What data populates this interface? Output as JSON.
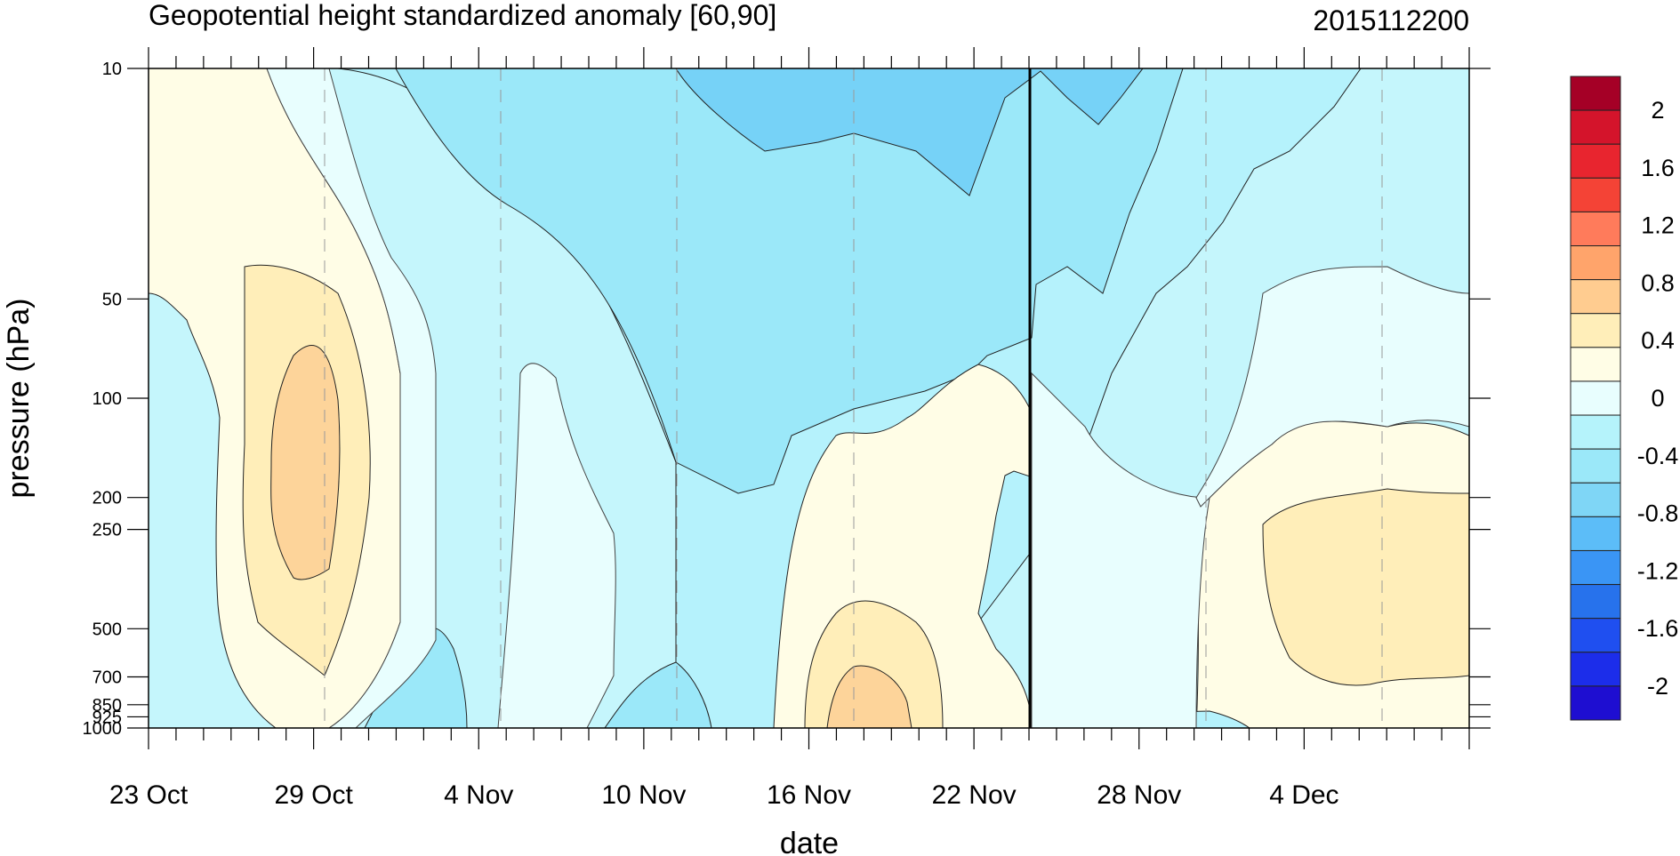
{
  "chart_data": {
    "type": "heatmap",
    "title": "Geopotential height standardized anomaly [60,90]",
    "timestamp": "2015112200",
    "xlabel": "date",
    "ylabel": "pressure (hPa)",
    "x_ticks": [
      "23 Oct",
      "29 Oct",
      "4 Nov",
      "10 Nov",
      "16 Nov",
      "22 Nov",
      "28 Nov",
      "4 Dec"
    ],
    "x_range": [
      "2015-10-23",
      "2015-12-10"
    ],
    "y_ticks": [
      "10",
      "50",
      "100",
      "200",
      "250",
      "500",
      "700",
      "850",
      "925",
      "1000"
    ],
    "y_range": [
      1000,
      10
    ],
    "y_scale": "log",
    "current_date_marker": "2015-11-22",
    "colorbar": {
      "labels": [
        "2",
        "1.6",
        "1.2",
        "0.8",
        "0.4",
        "0",
        "-0.4",
        "-0.8",
        "-1.2",
        "-1.6",
        "-2"
      ],
      "colors": [
        "#a50026",
        "#d4142b",
        "#e8252f",
        "#f44336",
        "#ff7b5b",
        "#ffa46b",
        "#ffcc90",
        "#ffeeb9",
        "#fffde6",
        "#e8fefe",
        "#b5f3fb",
        "#9be8f9",
        "#7fd6f6",
        "#5cbdf8",
        "#3a95f5",
        "#2772ec",
        "#1f4ff0",
        "#1c2dea",
        "#1e0ed1"
      ],
      "position": "right"
    },
    "anomaly_features": [
      {
        "level_range": [
          700,
          100
        ],
        "date": "2015-10-28",
        "peak": 0.8
      },
      {
        "level_range": [
          1000,
          400
        ],
        "date": "2015-11-16",
        "peak": 0.8
      },
      {
        "level_range": [
          700,
          200
        ],
        "date": "2015-12-05",
        "peak": 0.4
      },
      {
        "level_range": [
          60,
          10
        ],
        "date": "2015-11-17",
        "peak": -0.8
      },
      {
        "level_range": [
          30,
          10
        ],
        "date": "2015-11-25",
        "peak": -0.8
      }
    ]
  }
}
